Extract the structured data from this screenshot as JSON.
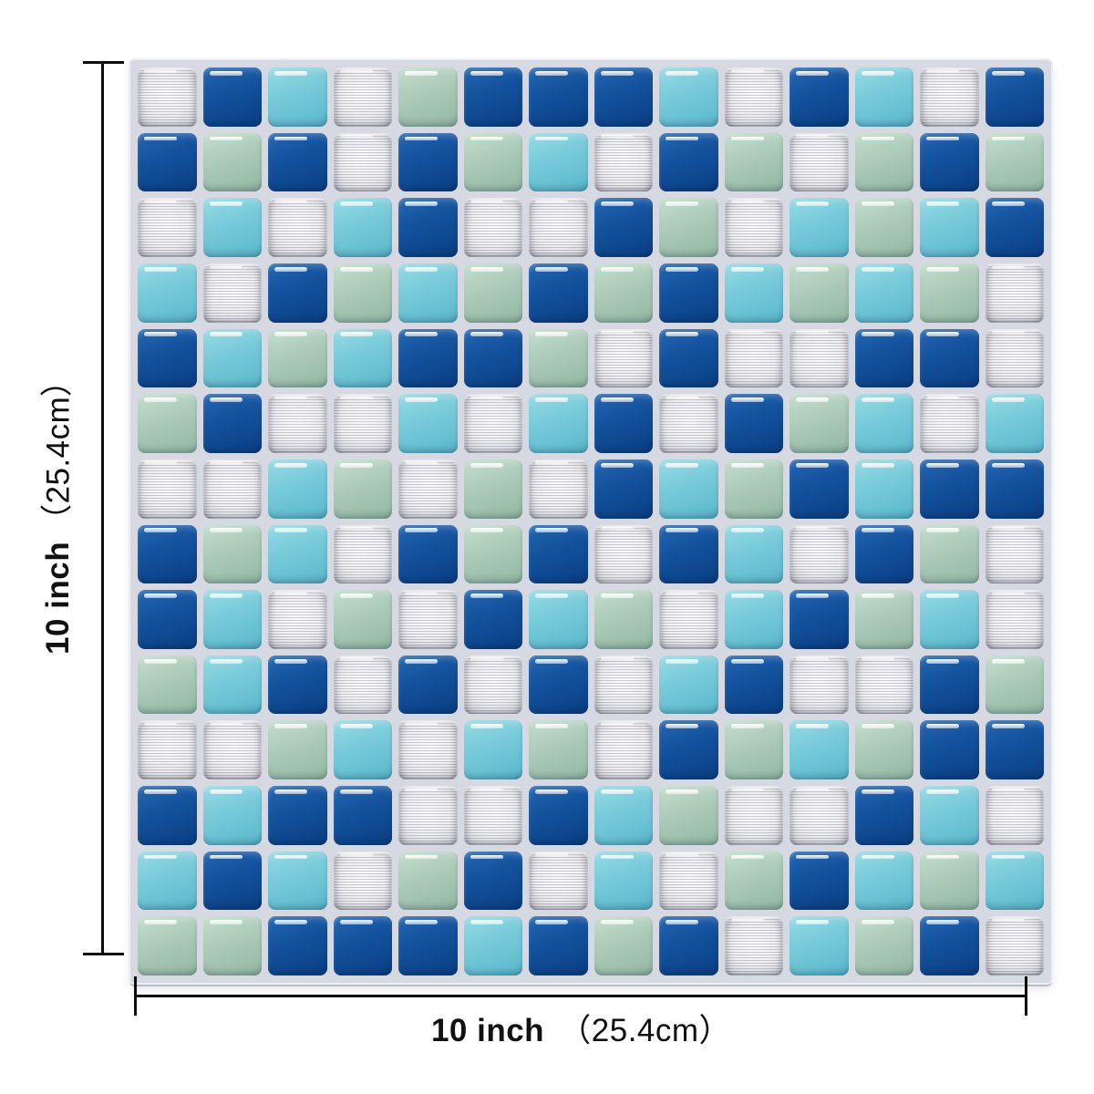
{
  "page": {
    "background": "#ffffff",
    "description": "mosaic tile sheet product dimension image"
  },
  "product": {
    "grid": {
      "rows": 14,
      "cols": 14,
      "pattern": [
        "SNCSGNNNCSNCSN",
        "NGNSNGCSNGSGNG",
        "SCSCNSSNGSCGCN",
        "CSNGCGNGNCGCGS",
        "NCGCNNGSNSSNNS",
        "GNSSCSCNSNGCSC",
        "SSCGSGSNCGNCNN",
        "NGCSNGNSNCSNGS",
        "NCSGSNCGSCNGCS",
        "GCNSNSNSCNSSNG",
        "SSGCSCGSNGCGNN",
        "NCNNSSNCGSSNCS",
        "CNCSGNSCSGNCGC",
        "GGNNNCNGNSCGNS"
      ]
    },
    "tile_colors": {
      "N": {
        "name": "navy-blue",
        "hex": "#12519c"
      },
      "C": {
        "name": "aqua-cyan",
        "hex": "#74c9d9"
      },
      "G": {
        "name": "sage-green",
        "hex": "#a8c8b5"
      },
      "S": {
        "name": "brushed-silver",
        "hex": "#d9d9de"
      }
    },
    "grout_color": "#d6d9e2",
    "dimension_line_color": "#0c0c0c"
  },
  "dimensions": {
    "left": {
      "bold": "10 inch",
      "paren": "（25.4cm）"
    },
    "bottom": {
      "bold": "10 inch",
      "paren": "（25.4cm）"
    }
  }
}
